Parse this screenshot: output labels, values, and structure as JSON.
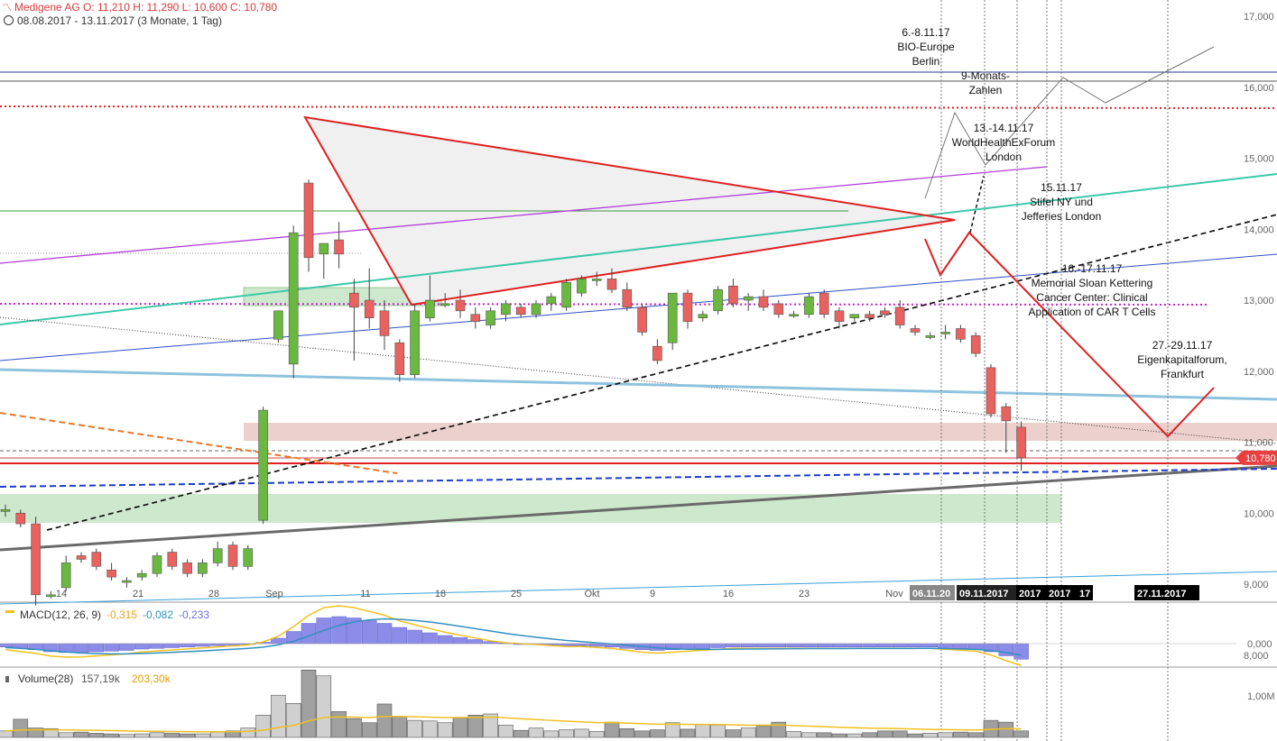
{
  "header": {
    "title": "Medigene AG   O: 11,210  H: 11,290  L: 10,600  C: 10,780",
    "date_range": "08.08.2017 - 13.11.2017   (3 Monate, 1 Tag)"
  },
  "colors": {
    "up": "#6ab83f",
    "down": "#e8625f",
    "triangle": "#e02020",
    "current_price": "#e84040"
  },
  "chart_data": [
    {
      "type": "candlestick",
      "y_ticks": [
        "17,000",
        "16,000",
        "15,000",
        "14,000",
        "13,000",
        "12,000",
        "11,000",
        "10,000",
        "9,000",
        "8,000"
      ],
      "ylim": [
        7.7,
        17.2
      ],
      "x_labels": [
        "14",
        "21",
        "28",
        "Sep",
        "11",
        "18",
        "25",
        "Okt",
        "9",
        "16",
        "23",
        "Nov"
      ],
      "date_markers": [
        "06.11.20",
        "09.11.2017",
        "2017",
        "2017",
        "17",
        "27.11.2017"
      ],
      "current_price_label": "10,780",
      "candles": [
        {
          "o": 10.05,
          "h": 10.12,
          "l": 9.95,
          "c": 10.05
        },
        {
          "o": 10.0,
          "h": 10.05,
          "l": 9.8,
          "c": 9.85
        },
        {
          "o": 9.85,
          "h": 9.95,
          "l": 8.7,
          "c": 8.85
        },
        {
          "o": 8.85,
          "h": 8.9,
          "l": 8.8,
          "c": 8.85
        },
        {
          "o": 8.95,
          "h": 9.4,
          "l": 8.9,
          "c": 9.3
        },
        {
          "o": 9.4,
          "h": 9.45,
          "l": 9.3,
          "c": 9.35
        },
        {
          "o": 9.45,
          "h": 9.5,
          "l": 9.2,
          "c": 9.25
        },
        {
          "o": 9.2,
          "h": 9.3,
          "l": 9.05,
          "c": 9.1
        },
        {
          "o": 9.05,
          "h": 9.1,
          "l": 8.95,
          "c": 9.05
        },
        {
          "o": 9.1,
          "h": 9.2,
          "l": 9.05,
          "c": 9.15
        },
        {
          "o": 9.15,
          "h": 9.45,
          "l": 9.1,
          "c": 9.4
        },
        {
          "o": 9.45,
          "h": 9.5,
          "l": 9.2,
          "c": 9.25
        },
        {
          "o": 9.3,
          "h": 9.35,
          "l": 9.1,
          "c": 9.15
        },
        {
          "o": 9.15,
          "h": 9.35,
          "l": 9.1,
          "c": 9.3
        },
        {
          "o": 9.3,
          "h": 9.6,
          "l": 9.25,
          "c": 9.5
        },
        {
          "o": 9.55,
          "h": 9.6,
          "l": 9.2,
          "c": 9.25
        },
        {
          "o": 9.25,
          "h": 9.55,
          "l": 9.2,
          "c": 9.5
        },
        {
          "o": 9.9,
          "h": 11.5,
          "l": 9.85,
          "c": 11.45
        },
        {
          "o": 12.45,
          "h": 12.85,
          "l": 12.4,
          "c": 12.85
        },
        {
          "o": 12.1,
          "h": 14.05,
          "l": 11.9,
          "c": 13.95
        },
        {
          "o": 14.65,
          "h": 14.7,
          "l": 13.4,
          "c": 13.6
        },
        {
          "o": 13.65,
          "h": 13.75,
          "l": 13.3,
          "c": 13.8
        },
        {
          "o": 13.85,
          "h": 14.1,
          "l": 13.45,
          "c": 13.65
        },
        {
          "o": 13.1,
          "h": 13.3,
          "l": 12.15,
          "c": 12.9
        },
        {
          "o": 13.0,
          "h": 13.45,
          "l": 12.6,
          "c": 12.75
        },
        {
          "o": 12.85,
          "h": 13.0,
          "l": 12.3,
          "c": 12.5
        },
        {
          "o": 12.4,
          "h": 12.45,
          "l": 11.85,
          "c": 11.95
        },
        {
          "o": 11.95,
          "h": 12.95,
          "l": 11.9,
          "c": 12.85
        },
        {
          "o": 12.75,
          "h": 13.35,
          "l": 12.7,
          "c": 13.0
        },
        {
          "o": 12.95,
          "h": 13.1,
          "l": 12.9,
          "c": 12.95
        },
        {
          "o": 13.0,
          "h": 13.15,
          "l": 12.75,
          "c": 12.85
        },
        {
          "o": 12.8,
          "h": 12.9,
          "l": 12.6,
          "c": 12.7
        },
        {
          "o": 12.65,
          "h": 12.9,
          "l": 12.6,
          "c": 12.85
        },
        {
          "o": 12.8,
          "h": 13.0,
          "l": 12.7,
          "c": 12.95
        },
        {
          "o": 12.9,
          "h": 12.95,
          "l": 12.75,
          "c": 12.8
        },
        {
          "o": 12.8,
          "h": 13.0,
          "l": 12.75,
          "c": 12.95
        },
        {
          "o": 12.95,
          "h": 13.1,
          "l": 12.85,
          "c": 13.05
        },
        {
          "o": 12.9,
          "h": 13.3,
          "l": 12.85,
          "c": 13.25
        },
        {
          "o": 13.1,
          "h": 13.35,
          "l": 13.05,
          "c": 13.3
        },
        {
          "o": 13.3,
          "h": 13.4,
          "l": 13.2,
          "c": 13.3
        },
        {
          "o": 13.3,
          "h": 13.45,
          "l": 13.1,
          "c": 13.15
        },
        {
          "o": 13.15,
          "h": 13.25,
          "l": 12.85,
          "c": 12.9
        },
        {
          "o": 12.9,
          "h": 12.95,
          "l": 12.5,
          "c": 12.55
        },
        {
          "o": 12.35,
          "h": 12.45,
          "l": 12.1,
          "c": 12.15
        },
        {
          "o": 12.4,
          "h": 13.1,
          "l": 12.3,
          "c": 13.1
        },
        {
          "o": 13.1,
          "h": 13.15,
          "l": 12.6,
          "c": 12.7
        },
        {
          "o": 12.75,
          "h": 12.85,
          "l": 12.7,
          "c": 12.8
        },
        {
          "o": 12.85,
          "h": 13.2,
          "l": 12.8,
          "c": 13.15
        },
        {
          "o": 13.2,
          "h": 13.3,
          "l": 12.9,
          "c": 12.95
        },
        {
          "o": 13.0,
          "h": 13.1,
          "l": 12.85,
          "c": 13.05
        },
        {
          "o": 13.05,
          "h": 13.15,
          "l": 12.85,
          "c": 12.9
        },
        {
          "o": 12.95,
          "h": 13.0,
          "l": 12.75,
          "c": 12.8
        },
        {
          "o": 12.8,
          "h": 12.85,
          "l": 12.75,
          "c": 12.8
        },
        {
          "o": 12.8,
          "h": 13.1,
          "l": 12.75,
          "c": 13.05
        },
        {
          "o": 13.1,
          "h": 13.15,
          "l": 12.75,
          "c": 12.8
        },
        {
          "o": 12.85,
          "h": 12.9,
          "l": 12.6,
          "c": 12.7
        },
        {
          "o": 12.75,
          "h": 12.8,
          "l": 12.7,
          "c": 12.8
        },
        {
          "o": 12.8,
          "h": 12.85,
          "l": 12.7,
          "c": 12.75
        },
        {
          "o": 12.85,
          "h": 12.9,
          "l": 12.75,
          "c": 12.8
        },
        {
          "o": 12.9,
          "h": 13.0,
          "l": 12.6,
          "c": 12.65
        },
        {
          "o": 12.6,
          "h": 12.65,
          "l": 12.5,
          "c": 12.55
        },
        {
          "o": 12.5,
          "h": 12.55,
          "l": 12.45,
          "c": 12.5
        },
        {
          "o": 12.55,
          "h": 12.65,
          "l": 12.45,
          "c": 12.55
        },
        {
          "o": 12.6,
          "h": 12.65,
          "l": 12.4,
          "c": 12.45
        },
        {
          "o": 12.5,
          "h": 12.55,
          "l": 12.2,
          "c": 12.25
        },
        {
          "o": 12.05,
          "h": 12.1,
          "l": 11.35,
          "c": 11.4
        },
        {
          "o": 11.5,
          "h": 11.55,
          "l": 10.85,
          "c": 11.3
        },
        {
          "o": 11.21,
          "h": 11.29,
          "l": 10.6,
          "c": 10.78
        }
      ],
      "annotations": [
        {
          "text": [
            "6.-8.11.17",
            "BIO-Europe",
            "Berlin"
          ]
        },
        {
          "text": [
            "9-Monats-",
            "Zahlen"
          ]
        },
        {
          "text": [
            "13.-14.11.17",
            "WorldHealthExForum",
            "London"
          ]
        },
        {
          "text": [
            "15.11.17",
            "Stifel NY und",
            "Jefferies London"
          ]
        },
        {
          "text": [
            "16.-17.11.17",
            "Memorial Sloan Kettering",
            "Cancer Center: Clinical",
            "Application of CAR T Cells"
          ]
        },
        {
          "text": [
            "27.-29.11.17",
            "Eigenkapitalforum,",
            "Frankfurt"
          ]
        }
      ]
    },
    {
      "type": "macd",
      "legend": "MACD(12, 26, 9)",
      "values": [
        "-0,315",
        "-0,082",
        "-0,233"
      ],
      "y_tick": "0,000",
      "histogram": [
        -0.05,
        -0.07,
        -0.09,
        -0.12,
        -0.13,
        -0.13,
        -0.12,
        -0.11,
        -0.1,
        -0.08,
        -0.07,
        -0.06,
        -0.05,
        -0.04,
        -0.03,
        -0.02,
        -0.01,
        0.02,
        0.08,
        0.18,
        0.3,
        0.38,
        0.4,
        0.38,
        0.34,
        0.3,
        0.24,
        0.2,
        0.16,
        0.12,
        0.09,
        0.06,
        0.03,
        0.01,
        0.0,
        -0.01,
        -0.02,
        -0.03,
        -0.03,
        -0.04,
        -0.05,
        -0.07,
        -0.09,
        -0.1,
        -0.09,
        -0.08,
        -0.07,
        -0.06,
        -0.05,
        -0.05,
        -0.05,
        -0.05,
        -0.05,
        -0.05,
        -0.05,
        -0.05,
        -0.05,
        -0.05,
        -0.05,
        -0.05,
        -0.05,
        -0.05,
        -0.06,
        -0.07,
        -0.08,
        -0.12,
        -0.18,
        -0.23
      ]
    },
    {
      "type": "volume",
      "legend": "Volume(28)",
      "values": [
        "157,19k",
        "203,30k"
      ],
      "y_tick": "1,00M",
      "bars_k": [
        110,
        310,
        160,
        150,
        80,
        90,
        70,
        60,
        50,
        60,
        80,
        70,
        60,
        60,
        100,
        110,
        160,
        380,
        720,
        580,
        1150,
        1050,
        440,
        320,
        250,
        570,
        350,
        290,
        280,
        250,
        330,
        380,
        400,
        210,
        120,
        160,
        110,
        130,
        140,
        100,
        260,
        150,
        110,
        130,
        250,
        140,
        220,
        210,
        130,
        160,
        190,
        260,
        100,
        80,
        80,
        60,
        60,
        80,
        110,
        110,
        60,
        70,
        80,
        90,
        80,
        290,
        260,
        110
      ]
    }
  ]
}
